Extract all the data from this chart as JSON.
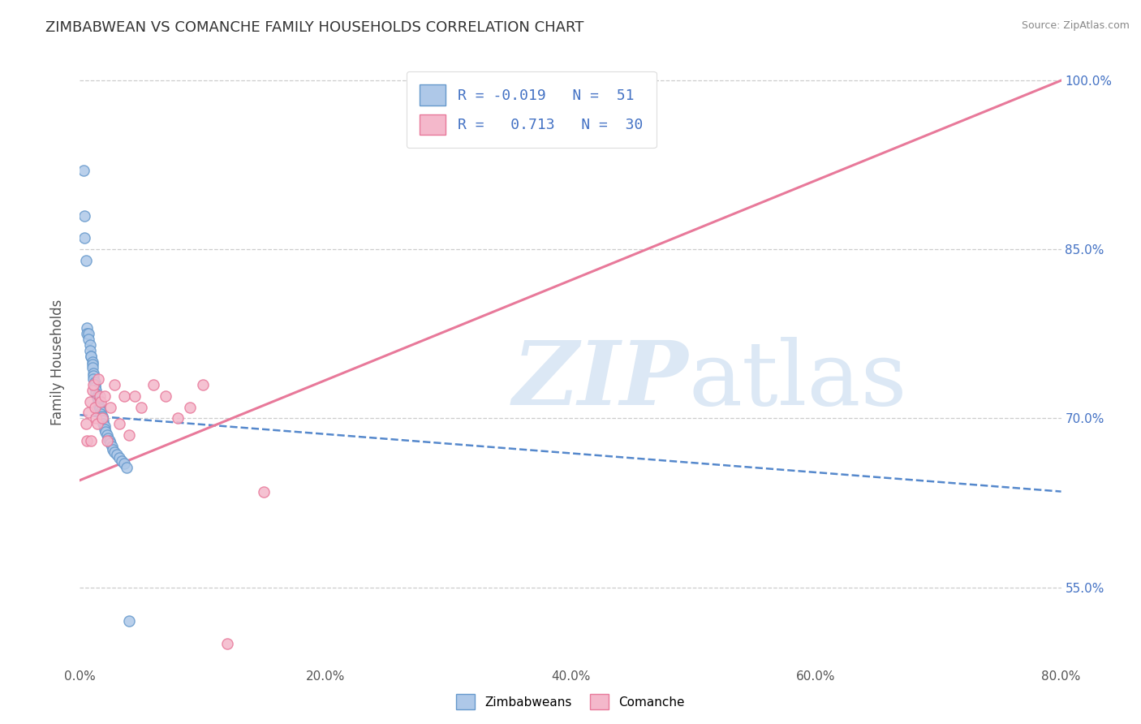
{
  "title": "ZIMBABWEAN VS COMANCHE FAMILY HOUSEHOLDS CORRELATION CHART",
  "source": "Source: ZipAtlas.com",
  "ylabel": "Family Households",
  "legend_labels": [
    "Zimbabweans",
    "Comanche"
  ],
  "R_zimbabwean": -0.019,
  "N_zimbabwean": 51,
  "R_comanche": 0.713,
  "N_comanche": 30,
  "xlim": [
    0.0,
    0.8
  ],
  "ylim": [
    0.48,
    1.02
  ],
  "yticks": [
    0.55,
    0.7,
    0.85,
    1.0
  ],
  "ytick_labels": [
    "55.0%",
    "70.0%",
    "85.0%",
    "100.0%"
  ],
  "xticks": [
    0.0,
    0.2,
    0.4,
    0.6,
    0.8
  ],
  "xtick_labels": [
    "0.0%",
    "20.0%",
    "40.0%",
    "60.0%",
    "80.0%"
  ],
  "grid_color": "#cccccc",
  "blue_color": "#aec8e8",
  "pink_color": "#f4b8cb",
  "blue_edge_color": "#6699cc",
  "pink_edge_color": "#e8799a",
  "blue_line_color": "#5588cc",
  "pink_line_color": "#e8799a",
  "watermark_color": "#dce8f5",
  "background_color": "#ffffff",
  "zimbabwean_x": [
    0.003,
    0.004,
    0.004,
    0.005,
    0.006,
    0.006,
    0.007,
    0.007,
    0.008,
    0.008,
    0.009,
    0.009,
    0.01,
    0.01,
    0.01,
    0.011,
    0.011,
    0.011,
    0.012,
    0.012,
    0.012,
    0.013,
    0.013,
    0.014,
    0.014,
    0.015,
    0.015,
    0.016,
    0.016,
    0.017,
    0.017,
    0.018,
    0.018,
    0.019,
    0.019,
    0.02,
    0.02,
    0.021,
    0.022,
    0.023,
    0.024,
    0.025,
    0.026,
    0.027,
    0.028,
    0.03,
    0.032,
    0.034,
    0.036,
    0.038,
    0.04
  ],
  "zimbabwean_y": [
    0.92,
    0.88,
    0.86,
    0.84,
    0.78,
    0.775,
    0.775,
    0.77,
    0.765,
    0.76,
    0.755,
    0.755,
    0.75,
    0.748,
    0.745,
    0.74,
    0.738,
    0.735,
    0.732,
    0.73,
    0.728,
    0.725,
    0.722,
    0.72,
    0.718,
    0.715,
    0.712,
    0.71,
    0.708,
    0.706,
    0.704,
    0.702,
    0.7,
    0.698,
    0.695,
    0.693,
    0.69,
    0.688,
    0.685,
    0.682,
    0.68,
    0.678,
    0.675,
    0.672,
    0.67,
    0.668,
    0.665,
    0.662,
    0.66,
    0.656,
    0.52
  ],
  "comanche_x": [
    0.005,
    0.006,
    0.007,
    0.008,
    0.009,
    0.01,
    0.011,
    0.012,
    0.013,
    0.014,
    0.015,
    0.016,
    0.017,
    0.018,
    0.02,
    0.022,
    0.025,
    0.028,
    0.032,
    0.036,
    0.04,
    0.045,
    0.05,
    0.06,
    0.07,
    0.08,
    0.09,
    0.1,
    0.12,
    0.15
  ],
  "comanche_y": [
    0.695,
    0.68,
    0.705,
    0.715,
    0.68,
    0.725,
    0.73,
    0.71,
    0.7,
    0.695,
    0.735,
    0.72,
    0.715,
    0.7,
    0.72,
    0.68,
    0.71,
    0.73,
    0.695,
    0.72,
    0.685,
    0.72,
    0.71,
    0.73,
    0.72,
    0.7,
    0.71,
    0.73,
    0.5,
    0.635
  ],
  "blue_trend_x": [
    0.0,
    0.8
  ],
  "blue_trend_y": [
    0.703,
    0.635
  ],
  "pink_trend_x": [
    0.0,
    0.8
  ],
  "pink_trend_y": [
    0.645,
    1.0
  ]
}
